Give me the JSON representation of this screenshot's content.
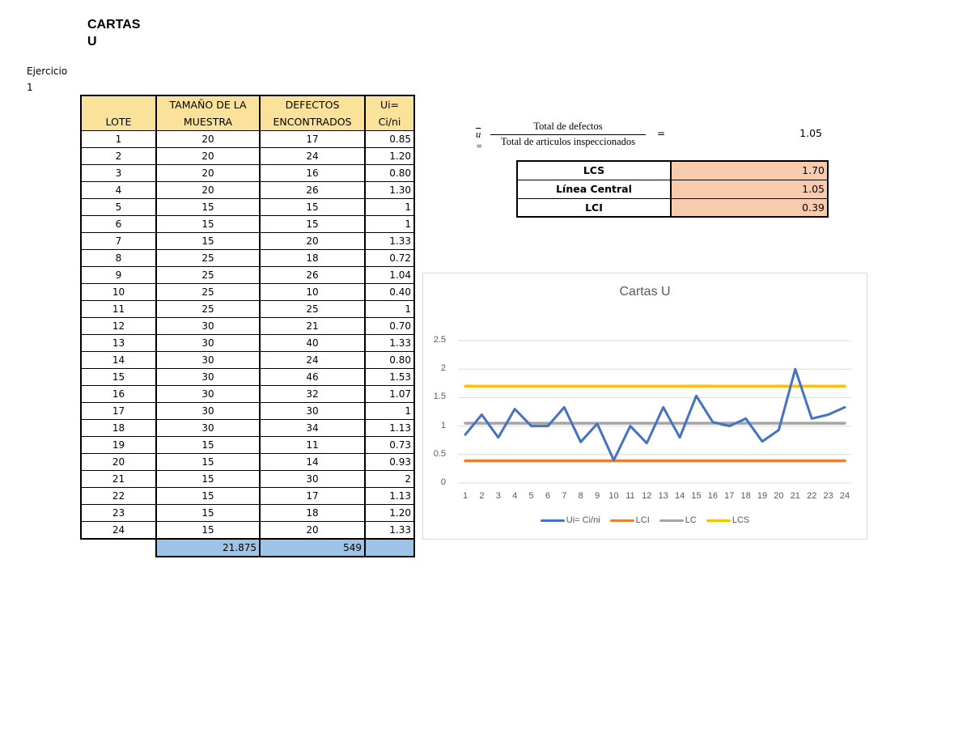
{
  "page": {
    "title": "CARTAS U",
    "title_lines": [
      "CARTAS",
      "U"
    ],
    "exercise_lines": [
      "Ejercicio",
      "1"
    ]
  },
  "table": {
    "headers": {
      "lote": "LOTE",
      "tamano": [
        "TAMAÑO DE LA",
        "MUESTRA"
      ],
      "defectos": [
        "DEFECTOS",
        "ENCONTRADOS"
      ],
      "ui": [
        "Ui=",
        "Ci/ni"
      ]
    },
    "header_color": "#fbe29a",
    "rows": [
      {
        "lote": "1",
        "n": "20",
        "c": "17",
        "u": "0.85"
      },
      {
        "lote": "2",
        "n": "20",
        "c": "24",
        "u": "1.20"
      },
      {
        "lote": "3",
        "n": "20",
        "c": "16",
        "u": "0.80"
      },
      {
        "lote": "4",
        "n": "20",
        "c": "26",
        "u": "1.30"
      },
      {
        "lote": "5",
        "n": "15",
        "c": "15",
        "u": "1"
      },
      {
        "lote": "6",
        "n": "15",
        "c": "15",
        "u": "1"
      },
      {
        "lote": "7",
        "n": "15",
        "c": "20",
        "u": "1.33"
      },
      {
        "lote": "8",
        "n": "25",
        "c": "18",
        "u": "0.72"
      },
      {
        "lote": "9",
        "n": "25",
        "c": "26",
        "u": "1.04"
      },
      {
        "lote": "10",
        "n": "25",
        "c": "10",
        "u": "0.40"
      },
      {
        "lote": "11",
        "n": "25",
        "c": "25",
        "u": "1"
      },
      {
        "lote": "12",
        "n": "30",
        "c": "21",
        "u": "0.70"
      },
      {
        "lote": "13",
        "n": "30",
        "c": "40",
        "u": "1.33"
      },
      {
        "lote": "14",
        "n": "30",
        "c": "24",
        "u": "0.80"
      },
      {
        "lote": "15",
        "n": "30",
        "c": "46",
        "u": "1.53"
      },
      {
        "lote": "16",
        "n": "30",
        "c": "32",
        "u": "1.07"
      },
      {
        "lote": "17",
        "n": "30",
        "c": "30",
        "u": "1"
      },
      {
        "lote": "18",
        "n": "30",
        "c": "34",
        "u": "1.13"
      },
      {
        "lote": "19",
        "n": "15",
        "c": "11",
        "u": "0.73"
      },
      {
        "lote": "20",
        "n": "15",
        "c": "14",
        "u": "0.93"
      },
      {
        "lote": "21",
        "n": "15",
        "c": "30",
        "u": "2"
      },
      {
        "lote": "22",
        "n": "15",
        "c": "17",
        "u": "1.13"
      },
      {
        "lote": "23",
        "n": "15",
        "c": "18",
        "u": "1.20"
      },
      {
        "lote": "24",
        "n": "15",
        "c": "20",
        "u": "1.33"
      }
    ],
    "totals": {
      "n": "21.875",
      "c": "549",
      "u": ""
    },
    "totals_color": "#9dc3e6"
  },
  "formula": {
    "lhs": "u",
    "numerator": "Total de defectos",
    "denominator": "Total de articulos inspeccionados",
    "equals": "=",
    "value": "1.05"
  },
  "limits": {
    "value_color": "#f8cbad",
    "rows": [
      {
        "label": "LCS",
        "value": "1.70"
      },
      {
        "label": "Línea Central",
        "value": "1.05"
      },
      {
        "label": "LCI",
        "value": "0.39"
      }
    ]
  },
  "chart_data": {
    "type": "line",
    "title": "Cartas U",
    "xlabel": "",
    "ylabel": "",
    "ylim": [
      0,
      2.5
    ],
    "yticks": [
      "0",
      "0.5",
      "1",
      "1.5",
      "2",
      "2.5"
    ],
    "grid": true,
    "legend_position": "bottom",
    "categories": [
      "1",
      "2",
      "3",
      "4",
      "5",
      "6",
      "7",
      "8",
      "9",
      "10",
      "11",
      "12",
      "13",
      "14",
      "15",
      "16",
      "17",
      "18",
      "19",
      "20",
      "21",
      "22",
      "23",
      "24"
    ],
    "series": [
      {
        "name": "Ui= Ci/ni",
        "color": "#4472c4",
        "values": [
          0.85,
          1.2,
          0.8,
          1.3,
          1,
          1,
          1.33,
          0.72,
          1.04,
          0.4,
          1,
          0.7,
          1.33,
          0.8,
          1.53,
          1.07,
          1,
          1.13,
          0.73,
          0.93,
          2,
          1.13,
          1.2,
          1.33
        ]
      },
      {
        "name": "LCI",
        "color": "#ed7d31",
        "values": [
          0.39,
          0.39,
          0.39,
          0.39,
          0.39,
          0.39,
          0.39,
          0.39,
          0.39,
          0.39,
          0.39,
          0.39,
          0.39,
          0.39,
          0.39,
          0.39,
          0.39,
          0.39,
          0.39,
          0.39,
          0.39,
          0.39,
          0.39,
          0.39
        ]
      },
      {
        "name": "LC",
        "color": "#a5a5a5",
        "values": [
          1.05,
          1.05,
          1.05,
          1.05,
          1.05,
          1.05,
          1.05,
          1.05,
          1.05,
          1.05,
          1.05,
          1.05,
          1.05,
          1.05,
          1.05,
          1.05,
          1.05,
          1.05,
          1.05,
          1.05,
          1.05,
          1.05,
          1.05,
          1.05
        ]
      },
      {
        "name": "LCS",
        "color": "#ffc000",
        "values": [
          1.7,
          1.7,
          1.7,
          1.7,
          1.7,
          1.7,
          1.7,
          1.7,
          1.7,
          1.7,
          1.7,
          1.7,
          1.7,
          1.7,
          1.7,
          1.7,
          1.7,
          1.7,
          1.7,
          1.7,
          1.7,
          1.7,
          1.7,
          1.7
        ]
      }
    ]
  }
}
